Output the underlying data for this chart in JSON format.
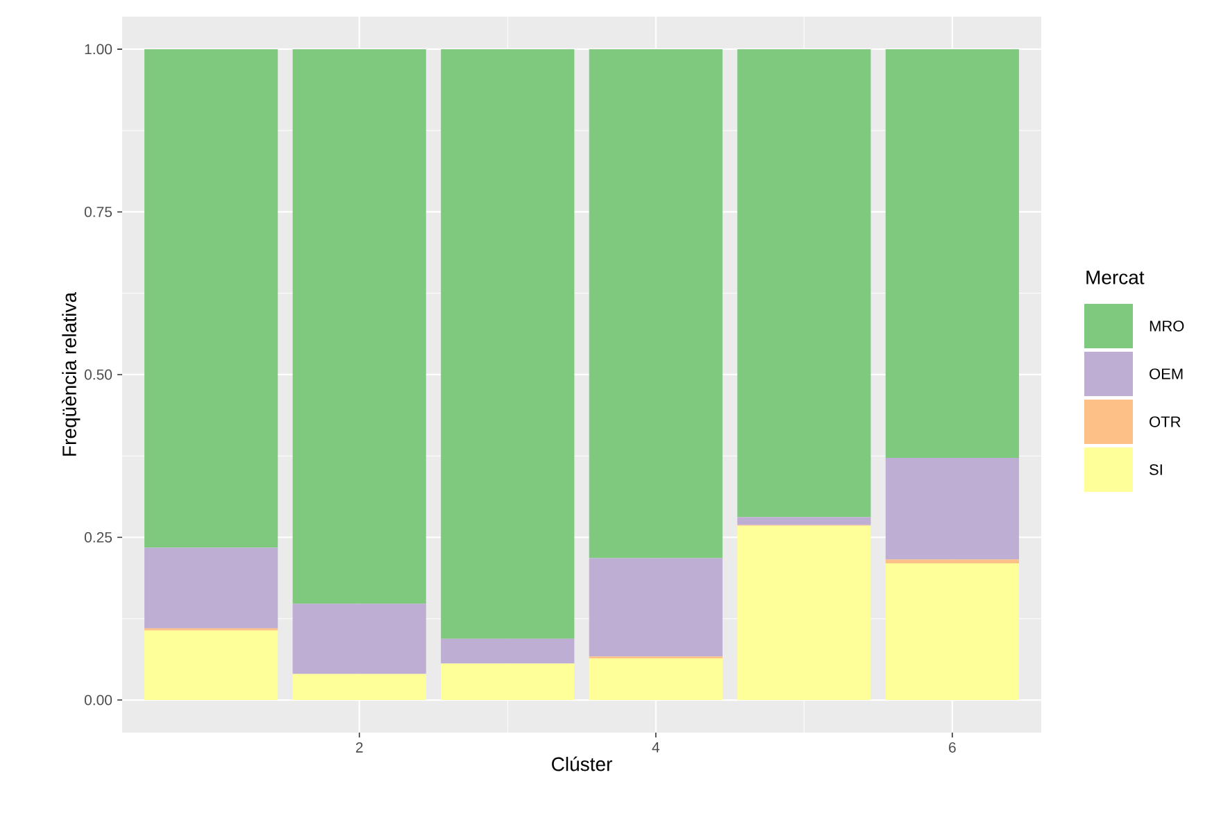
{
  "chart_data": {
    "type": "bar",
    "stacked": true,
    "xlabel": "Clúster",
    "ylabel": "Freqüència relativa",
    "legend_title": "Mercat",
    "legend": "right",
    "grid": true,
    "x": [
      1,
      2,
      3,
      4,
      5,
      6
    ],
    "xlim": [
      0.4,
      6.6
    ],
    "xticks": [
      2,
      4,
      6
    ],
    "ylim": [
      -0.05,
      1.05
    ],
    "yticks": [
      {
        "value": 0,
        "label": "0.00"
      },
      {
        "value": 0.25,
        "label": "0.25"
      },
      {
        "value": 0.5,
        "label": "0.50"
      },
      {
        "value": 0.75,
        "label": "0.75"
      },
      {
        "value": 1,
        "label": "1.00"
      }
    ],
    "series": [
      {
        "name": "SI",
        "color": "#ffff99",
        "values": [
          0.107,
          0.04,
          0.056,
          0.064,
          0.268,
          0.21
        ]
      },
      {
        "name": "OTR",
        "color": "#fdc086",
        "values": [
          0.003,
          0.0,
          0.0,
          0.003,
          0.001,
          0.006
        ]
      },
      {
        "name": "OEM",
        "color": "#beaed4",
        "values": [
          0.124,
          0.108,
          0.038,
          0.151,
          0.012,
          0.156
        ]
      },
      {
        "name": "MRO",
        "color": "#7fc97f",
        "values": [
          0.766,
          0.852,
          0.906,
          0.782,
          0.719,
          0.628
        ]
      }
    ]
  }
}
